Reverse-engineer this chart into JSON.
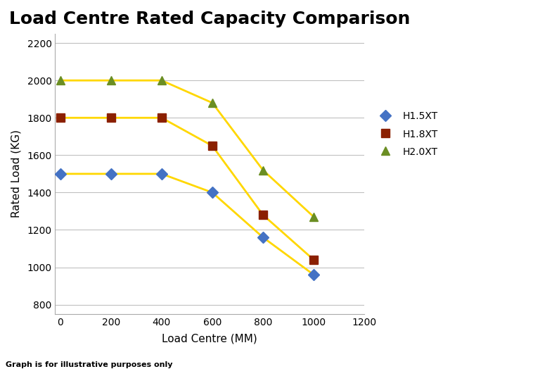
{
  "title": "Load Centre Rated Capacity Comparison",
  "xlabel": "Load Centre (MM)",
  "ylabel": "Rated Load (KG)",
  "footnote": "Graph is for illustrative purposes only",
  "series": [
    {
      "label": "H1.5XT",
      "x": [
        0,
        200,
        400,
        600,
        800,
        1000
      ],
      "y": [
        1500,
        1500,
        1500,
        1400,
        1160,
        960
      ],
      "marker_color": "#4472C4",
      "marker": "D",
      "line_color": "#FFD700",
      "line_width": 2.0,
      "marker_size": 8
    },
    {
      "label": "H1.8XT",
      "x": [
        0,
        200,
        400,
        600,
        800,
        1000
      ],
      "y": [
        1800,
        1800,
        1800,
        1650,
        1280,
        1040
      ],
      "marker_color": "#8B2000",
      "marker": "s",
      "line_color": "#FFD700",
      "line_width": 2.0,
      "marker_size": 8
    },
    {
      "label": "H2.0XT",
      "x": [
        0,
        200,
        400,
        600,
        800,
        1000
      ],
      "y": [
        2000,
        2000,
        2000,
        1880,
        1520,
        1270
      ],
      "marker_color": "#6B8E23",
      "marker": "^",
      "line_color": "#FFD700",
      "line_width": 2.0,
      "marker_size": 9
    }
  ],
  "xlim": [
    -20,
    1200
  ],
  "ylim": [
    750,
    2250
  ],
  "xticks": [
    0,
    200,
    400,
    600,
    800,
    1000,
    1200
  ],
  "yticks": [
    800,
    1000,
    1200,
    1400,
    1600,
    1800,
    2000,
    2200
  ],
  "background_color": "#FFFFFF",
  "plot_bg_color": "#FFFFFF",
  "grid_color": "#C0C0C0",
  "title_fontsize": 18,
  "axis_label_fontsize": 11,
  "tick_fontsize": 10,
  "legend_fontsize": 10,
  "footnote_fontsize": 8
}
